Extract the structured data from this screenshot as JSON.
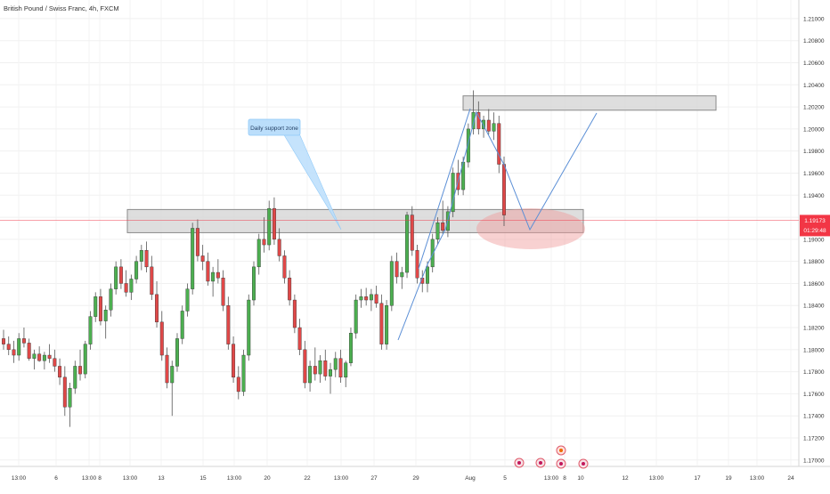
{
  "chart_data": {
    "type": "candlestick",
    "title": "British Pound / Swiss Franc, 4h, FXCM",
    "y_axis": {
      "ticks": [
        "1.21000",
        "1.20800",
        "1.20600",
        "1.20400",
        "1.20200",
        "1.20000",
        "1.19800",
        "1.19600",
        "1.19400",
        "1.19200",
        "1.19000",
        "1.18800",
        "1.18600",
        "1.18400",
        "1.18200",
        "1.18000",
        "1.17800",
        "1.17600",
        "1.17400",
        "1.17200",
        "1.17000"
      ],
      "ylim": [
        1.1695,
        1.2108
      ]
    },
    "x_axis": {
      "ticks": [
        "13:00",
        "6",
        "13:00",
        "8",
        "13:00",
        "13",
        "15",
        "13:00",
        "20",
        "22",
        "13:00",
        "27",
        "29",
        "Aug",
        "5",
        "13:00",
        "8",
        "10",
        "12",
        "13:00",
        "17",
        "19",
        "13:00",
        "24"
      ]
    },
    "current_price": {
      "value": 1.19173,
      "label": "1.19173",
      "countdown": "01:29:48"
    },
    "annotations": {
      "callout_text": "Daily support zone",
      "support_zone": [
        1.1906,
        1.1927
      ],
      "resistance_zone": [
        1.2017,
        1.203
      ]
    },
    "colors": {
      "up": "#26a69a",
      "down": "#ef5350",
      "up_candle": "#4caf50",
      "down_candle": "#e04848",
      "price_line": "#f23645"
    },
    "ohlc": [
      [
        1.181,
        1.1818,
        1.18,
        1.1805
      ],
      [
        1.1805,
        1.1812,
        1.1795,
        1.18
      ],
      [
        1.18,
        1.1808,
        1.1788,
        1.1795
      ],
      [
        1.1795,
        1.1815,
        1.179,
        1.181
      ],
      [
        1.181,
        1.182,
        1.1802,
        1.1806
      ],
      [
        1.1806,
        1.181,
        1.179,
        1.1792
      ],
      [
        1.1792,
        1.18,
        1.1782,
        1.1796
      ],
      [
        1.1796,
        1.1803,
        1.1789,
        1.179
      ],
      [
        1.179,
        1.1798,
        1.1782,
        1.1795
      ],
      [
        1.1795,
        1.1805,
        1.1788,
        1.1792
      ],
      [
        1.1792,
        1.18,
        1.178,
        1.1785
      ],
      [
        1.1785,
        1.1792,
        1.1768,
        1.1775
      ],
      [
        1.1775,
        1.1785,
        1.174,
        1.1748
      ],
      [
        1.1748,
        1.177,
        1.173,
        1.1765
      ],
      [
        1.1765,
        1.179,
        1.176,
        1.1785
      ],
      [
        1.1785,
        1.18,
        1.1772,
        1.1778
      ],
      [
        1.1778,
        1.1808,
        1.1774,
        1.1805
      ],
      [
        1.1805,
        1.1835,
        1.18,
        1.183
      ],
      [
        1.183,
        1.1852,
        1.1825,
        1.1848
      ],
      [
        1.1848,
        1.1855,
        1.1822,
        1.1826
      ],
      [
        1.1826,
        1.184,
        1.181,
        1.1836
      ],
      [
        1.1836,
        1.186,
        1.183,
        1.1855
      ],
      [
        1.1855,
        1.188,
        1.185,
        1.1875
      ],
      [
        1.1875,
        1.1882,
        1.1855,
        1.186
      ],
      [
        1.186,
        1.1872,
        1.1848,
        1.1852
      ],
      [
        1.1852,
        1.1868,
        1.1845,
        1.1864
      ],
      [
        1.1864,
        1.1885,
        1.186,
        1.188
      ],
      [
        1.188,
        1.1895,
        1.1872,
        1.189
      ],
      [
        1.189,
        1.1898,
        1.187,
        1.1875
      ],
      [
        1.1875,
        1.1885,
        1.1845,
        1.185
      ],
      [
        1.185,
        1.1862,
        1.182,
        1.1825
      ],
      [
        1.1825,
        1.1835,
        1.179,
        1.1795
      ],
      [
        1.1795,
        1.1802,
        1.1765,
        1.177
      ],
      [
        1.177,
        1.179,
        1.174,
        1.1785
      ],
      [
        1.1785,
        1.1815,
        1.178,
        1.181
      ],
      [
        1.181,
        1.184,
        1.1805,
        1.1835
      ],
      [
        1.1835,
        1.186,
        1.183,
        1.1855
      ],
      [
        1.1855,
        1.1915,
        1.185,
        1.191
      ],
      [
        1.191,
        1.1918,
        1.188,
        1.1885
      ],
      [
        1.1885,
        1.1895,
        1.1872,
        1.188
      ],
      [
        1.188,
        1.1888,
        1.1858,
        1.1862
      ],
      [
        1.1862,
        1.1875,
        1.1848,
        1.187
      ],
      [
        1.187,
        1.1882,
        1.186,
        1.1865
      ],
      [
        1.1865,
        1.1872,
        1.1835,
        1.184
      ],
      [
        1.184,
        1.1848,
        1.18,
        1.1805
      ],
      [
        1.1805,
        1.1812,
        1.177,
        1.1775
      ],
      [
        1.1775,
        1.1785,
        1.1755,
        1.1762
      ],
      [
        1.1762,
        1.18,
        1.1758,
        1.1795
      ],
      [
        1.1795,
        1.185,
        1.179,
        1.1845
      ],
      [
        1.1845,
        1.188,
        1.184,
        1.1875
      ],
      [
        1.1875,
        1.1905,
        1.1868,
        1.19
      ],
      [
        1.19,
        1.192,
        1.1888,
        1.1895
      ],
      [
        1.1895,
        1.1935,
        1.189,
        1.1928
      ],
      [
        1.1928,
        1.1938,
        1.1895,
        1.19
      ],
      [
        1.19,
        1.191,
        1.188,
        1.1885
      ],
      [
        1.1885,
        1.189,
        1.186,
        1.1865
      ],
      [
        1.1865,
        1.1872,
        1.184,
        1.1845
      ],
      [
        1.1845,
        1.185,
        1.1815,
        1.182
      ],
      [
        1.182,
        1.1828,
        1.1795,
        1.18
      ],
      [
        1.18,
        1.1808,
        1.1765,
        1.177
      ],
      [
        1.177,
        1.179,
        1.1762,
        1.1785
      ],
      [
        1.1785,
        1.1802,
        1.1772,
        1.1778
      ],
      [
        1.1778,
        1.1795,
        1.177,
        1.179
      ],
      [
        1.179,
        1.18,
        1.1772,
        1.1776
      ],
      [
        1.1776,
        1.1788,
        1.176,
        1.1782
      ],
      [
        1.1782,
        1.1798,
        1.1775,
        1.1792
      ],
      [
        1.1792,
        1.18,
        1.177,
        1.1775
      ],
      [
        1.1775,
        1.179,
        1.1766,
        1.1788
      ],
      [
        1.1788,
        1.182,
        1.1785,
        1.1815
      ],
      [
        1.1815,
        1.185,
        1.181,
        1.1845
      ],
      [
        1.1845,
        1.1855,
        1.1838,
        1.1848
      ],
      [
        1.1848,
        1.1856,
        1.184,
        1.1845
      ],
      [
        1.1845,
        1.1855,
        1.1835,
        1.185
      ],
      [
        1.185,
        1.1858,
        1.1838,
        1.1842
      ],
      [
        1.1842,
        1.185,
        1.18,
        1.1805
      ],
      [
        1.1805,
        1.1845,
        1.18,
        1.184
      ],
      [
        1.184,
        1.1885,
        1.1835,
        1.188
      ],
      [
        1.188,
        1.1888,
        1.186,
        1.1866
      ],
      [
        1.1866,
        1.1875,
        1.1855,
        1.187
      ],
      [
        1.187,
        1.1925,
        1.1865,
        1.1922
      ],
      [
        1.1922,
        1.193,
        1.1885,
        1.189
      ],
      [
        1.189,
        1.1895,
        1.186,
        1.1865
      ],
      [
        1.1865,
        1.1872,
        1.1852,
        1.186
      ],
      [
        1.186,
        1.188,
        1.1852,
        1.1875
      ],
      [
        1.1875,
        1.1905,
        1.187,
        1.19
      ],
      [
        1.19,
        1.192,
        1.1895,
        1.1915
      ],
      [
        1.1915,
        1.1935,
        1.1905,
        1.1908
      ],
      [
        1.1908,
        1.193,
        1.1902,
        1.1925
      ],
      [
        1.1925,
        1.1965,
        1.192,
        1.196
      ],
      [
        1.196,
        1.1972,
        1.194,
        1.1945
      ],
      [
        1.1945,
        1.1975,
        1.194,
        1.197
      ],
      [
        1.197,
        1.2005,
        1.1965,
        1.2
      ],
      [
        1.2,
        1.2035,
        1.1995,
        1.2015
      ],
      [
        1.2015,
        1.2025,
        1.1995,
        1.2
      ],
      [
        1.2,
        1.2012,
        1.1992,
        1.2008
      ],
      [
        1.2008,
        1.2018,
        1.1995,
        1.1998
      ],
      [
        1.1998,
        1.2015,
        1.199,
        1.2005
      ],
      [
        1.2005,
        1.2012,
        1.196,
        1.1968
      ],
      [
        1.1968,
        1.1975,
        1.1912,
        1.1922
      ]
    ],
    "events": [
      "events-a",
      "events-b",
      "events-c",
      "events-d"
    ]
  }
}
